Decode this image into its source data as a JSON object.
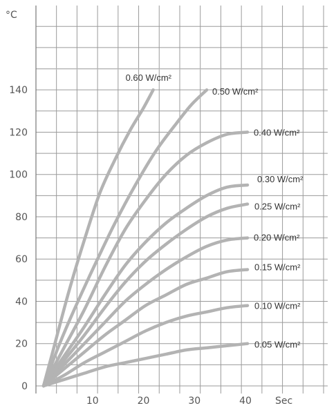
{
  "chart_data": {
    "type": "line",
    "y_unit": "°C",
    "x_unit": "Sec",
    "xlim": [
      0,
      40
    ],
    "ylim": [
      0,
      150
    ],
    "x_ticks": [
      "10",
      "20",
      "30",
      "40"
    ],
    "y_ticks": [
      "0",
      "20",
      "40",
      "60",
      "80",
      "100",
      "120",
      "140"
    ],
    "grid": true,
    "line_color": "#b3b3b3",
    "series": [
      {
        "name": "0.60 W/cm²",
        "x": [
          0,
          2,
          5,
          8,
          11,
          14,
          17,
          19.5,
          21.5
        ],
        "y": [
          0,
          18,
          45,
          69,
          91,
          107,
          121,
          131,
          140
        ]
      },
      {
        "name": "0.50 W/cm²",
        "x": [
          0,
          3,
          6,
          10,
          14,
          18,
          22,
          26,
          29,
          32
        ],
        "y": [
          0,
          19,
          36,
          57,
          77,
          95,
          111,
          124,
          133,
          140
        ]
      },
      {
        "name": "0.40 W/cm²",
        "x": [
          0,
          4,
          8,
          12,
          16,
          20,
          24,
          28,
          32,
          36,
          40
        ],
        "y": [
          0,
          18,
          36,
          56,
          74,
          88,
          100,
          109,
          115,
          119,
          120
        ]
      },
      {
        "name": "0.30 W/cm²",
        "x": [
          0,
          4,
          8,
          12,
          16,
          20,
          24,
          28,
          32,
          36,
          40
        ],
        "y": [
          0,
          14,
          28,
          43,
          57,
          68,
          77,
          84,
          90,
          94,
          95
        ]
      },
      {
        "name": "0.25 W/cm²",
        "x": [
          0,
          4,
          8,
          12,
          16,
          20,
          24,
          28,
          32,
          36,
          40
        ],
        "y": [
          0,
          12,
          24,
          37,
          49,
          59,
          67,
          74,
          80,
          84,
          86
        ]
      },
      {
        "name": "0.20 W/cm²",
        "x": [
          0,
          4,
          8,
          12,
          16,
          20,
          24,
          28,
          32,
          36,
          40
        ],
        "y": [
          0,
          10,
          20,
          30,
          40,
          48,
          55,
          61,
          66,
          69,
          70
        ]
      },
      {
        "name": "0.15 W/cm²",
        "x": [
          0,
          4,
          8,
          12,
          16,
          20,
          24,
          28,
          32,
          36,
          40
        ],
        "y": [
          0,
          8,
          16,
          24,
          31,
          38,
          43,
          48,
          51,
          54,
          55
        ]
      },
      {
        "name": "0.10 W/cm²",
        "x": [
          0,
          4,
          8,
          12,
          16,
          20,
          24,
          28,
          32,
          36,
          40
        ],
        "y": [
          0,
          5,
          11,
          16,
          21,
          26,
          30,
          33,
          35,
          37,
          38
        ]
      },
      {
        "name": "0.05 W/cm²",
        "x": [
          0,
          4,
          8,
          12,
          16,
          20,
          24,
          28,
          32,
          36,
          40
        ],
        "y": [
          0,
          3,
          6,
          9,
          11,
          13,
          15,
          17,
          18,
          19,
          20
        ]
      }
    ]
  }
}
